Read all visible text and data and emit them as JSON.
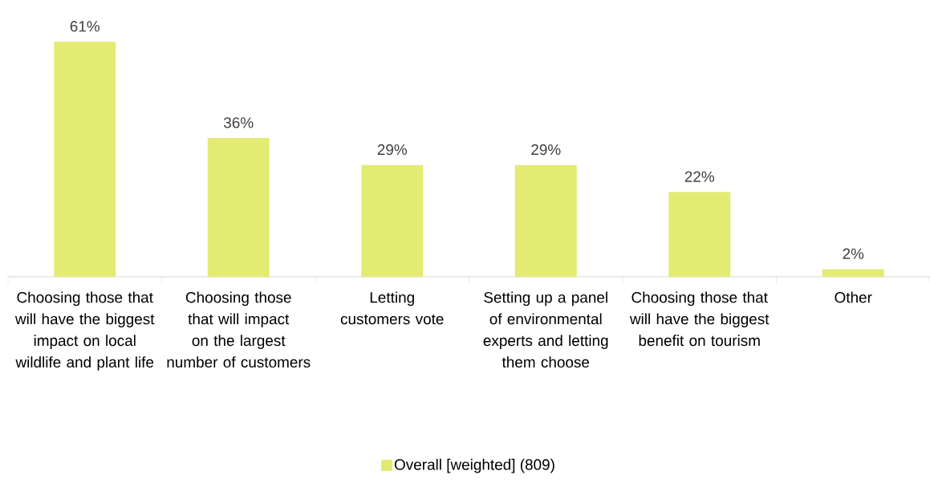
{
  "chart_data": {
    "type": "bar",
    "categories": [
      "Choosing those that will have the biggest impact on local wildlife and plant life",
      "Choosing those that will impact on the largest number of customers",
      "Letting customers vote",
      "Setting up a panel of environmental experts and letting them choose",
      "Choosing those that will have the biggest benefit on tourism",
      "Other"
    ],
    "series": [
      {
        "name": "Overall [weighted] (809)",
        "color": "#e3eb73",
        "values": [
          61,
          36,
          29,
          29,
          22,
          2
        ],
        "value_labels": [
          "61%",
          "36%",
          "29%",
          "29%",
          "22%",
          "2%"
        ]
      }
    ],
    "legend": "bottom"
  }
}
